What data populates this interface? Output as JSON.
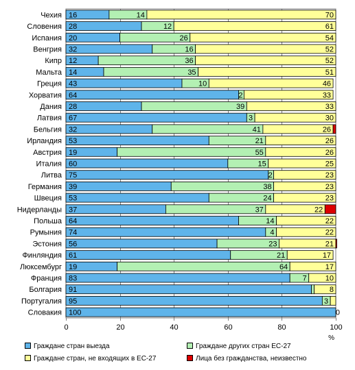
{
  "chart_data": {
    "type": "bar",
    "orientation": "horizontal",
    "stacked": true,
    "categories": [
      "Чехия",
      "Словения",
      "Испания",
      "Венгрия",
      "Кипр",
      "Мальта",
      "Греция",
      "Хорватия",
      "Дания",
      "Латвия",
      "Бельгия",
      "Ирландия",
      "Австрия",
      "Италия",
      "Литва",
      "Германия",
      "Швеция",
      "Нидерланды",
      "Польша",
      "Румыния",
      "Эстония",
      "Финляндия",
      "Люксембург",
      "Франция",
      "Болгария",
      "Португалия",
      "Словакия"
    ],
    "series": [
      {
        "name": "Граждане стран выезда",
        "color": "#5fb4ea",
        "values": [
          16,
          28,
          20,
          32,
          12,
          14,
          43,
          64,
          28,
          67,
          32,
          53,
          19,
          60,
          75,
          39,
          53,
          37,
          64,
          74,
          56,
          61,
          19,
          83,
          91,
          95,
          100
        ],
        "labels": [
          "16",
          "28",
          "20",
          "32",
          "12",
          "14",
          "43",
          "64",
          "28",
          "67",
          "32",
          "53",
          "19",
          "60",
          "75",
          "39",
          "53",
          "37",
          "64",
          "74",
          "56",
          "61",
          "19",
          "83",
          "91",
          "95",
          "100"
        ]
      },
      {
        "name": "Граждане других стран ЕС-27",
        "color": "#b3f0b3",
        "values": [
          14,
          12,
          26,
          16,
          36,
          35,
          10,
          2,
          39,
          3,
          41,
          21,
          55,
          15,
          2,
          38,
          24,
          37,
          14,
          4,
          23,
          21,
          64,
          7,
          1,
          3,
          0
        ],
        "labels": [
          "14",
          "12",
          "26",
          "16",
          "36",
          "35",
          "10",
          "2",
          "39",
          "3",
          "41",
          "21",
          "55",
          "15",
          "2",
          "38",
          "24",
          "37",
          "14",
          "4",
          "23",
          "21",
          "64",
          "7",
          "",
          "3",
          ""
        ]
      },
      {
        "name": "Граждане стран, не входящих в ЕС-27",
        "color": "#ffff99",
        "values": [
          70,
          61,
          54,
          52,
          52,
          51,
          46,
          33,
          33,
          30,
          26,
          26,
          26,
          25,
          23,
          23,
          23,
          22,
          22,
          22,
          21,
          17,
          17,
          10,
          8,
          2,
          0
        ],
        "labels": [
          "70",
          "61",
          "54",
          "52",
          "52",
          "51",
          "46",
          "33",
          "33",
          "30",
          "26",
          "26",
          "26",
          "25",
          "23",
          "23",
          "23",
          "22",
          "22",
          "22",
          "21",
          "17",
          "17",
          "10",
          "8",
          "",
          "0"
        ]
      },
      {
        "name": "Лица без гражданства, неизвестно",
        "color": "#dd0000",
        "values": [
          0,
          0,
          0,
          0,
          0,
          0,
          0,
          0,
          0,
          0,
          1,
          0,
          0,
          0,
          0,
          0,
          0,
          4,
          0,
          0,
          0.5,
          0,
          0,
          0,
          0,
          0,
          0
        ],
        "labels": [
          "",
          "",
          "",
          "",
          "",
          "",
          "",
          "",
          "",
          "",
          "",
          "",
          "",
          "",
          "",
          "",
          "",
          "",
          "",
          "",
          "",
          "",
          "",
          "",
          "",
          "",
          ""
        ]
      }
    ],
    "xlim": [
      0,
      100
    ],
    "xticks": [
      "0",
      "20",
      "40",
      "60",
      "80",
      "100"
    ],
    "xunit": "%",
    "grid": true,
    "legend_position": "bottom"
  }
}
